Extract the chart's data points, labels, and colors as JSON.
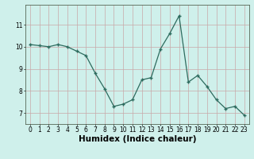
{
  "x": [
    0,
    1,
    2,
    3,
    4,
    5,
    6,
    7,
    8,
    9,
    10,
    11,
    12,
    13,
    14,
    15,
    16,
    17,
    18,
    19,
    20,
    21,
    22,
    23
  ],
  "y": [
    10.1,
    10.05,
    10.0,
    10.1,
    10.0,
    9.8,
    9.6,
    8.8,
    8.1,
    7.3,
    7.4,
    7.6,
    8.5,
    8.6,
    9.9,
    10.6,
    11.4,
    8.4,
    8.7,
    8.2,
    7.6,
    7.2,
    7.3,
    6.9
  ],
  "xlabel": "Humidex (Indice chaleur)",
  "line_color": "#2d6b5e",
  "marker_color": "#2d6b5e",
  "bg_color": "#cff0eb",
  "grid_color": "#c8a8a8",
  "ylim": [
    6.5,
    11.9
  ],
  "yticks": [
    7,
    8,
    9,
    10,
    11
  ],
  "tick_label_fontsize": 5.5,
  "xlabel_fontsize": 7.5
}
